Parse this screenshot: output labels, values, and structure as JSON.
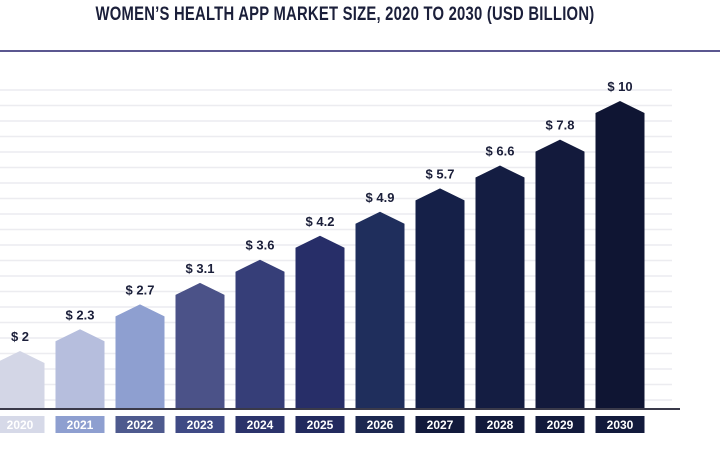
{
  "chart_data": {
    "type": "bar",
    "title": "WOMEN’S HEALTH APP MARKET SIZE, 2020 TO 2030 (USD BILLION)",
    "categories": [
      "2020",
      "2021",
      "2022",
      "2023",
      "2024",
      "2025",
      "2026",
      "2027",
      "2028",
      "2029",
      "2030"
    ],
    "values": [
      2,
      2.3,
      2.7,
      3.1,
      3.6,
      4.2,
      4.9,
      5.7,
      6.6,
      7.8,
      10
    ],
    "data_labels": [
      "$ 2",
      "$ 2.3",
      "$ 2.7",
      "$ 3.1",
      "$ 3.6",
      "$ 4.2",
      "$ 4.9",
      "$ 5.7",
      "$ 6.6",
      "$ 7.8",
      "$ 10"
    ],
    "xlabel": "",
    "ylabel": "",
    "grid": true,
    "bar_colors": [
      "#d3d6e6",
      "#b6bedd",
      "#8e9fd0",
      "#4b5288",
      "#363e78",
      "#272e68",
      "#1f2e5c",
      "#152048",
      "#141d42",
      "#131a3c",
      "#0f1533"
    ],
    "label_box_colors": [
      "#d6d9e8",
      "#8e9fd0",
      "#4e5a8e",
      "#3f4a85",
      "#2b336b",
      "#222a5e",
      "#1c2850",
      "#121a3c",
      "#121a3c",
      "#121a3c",
      "#121a3c"
    ]
  }
}
